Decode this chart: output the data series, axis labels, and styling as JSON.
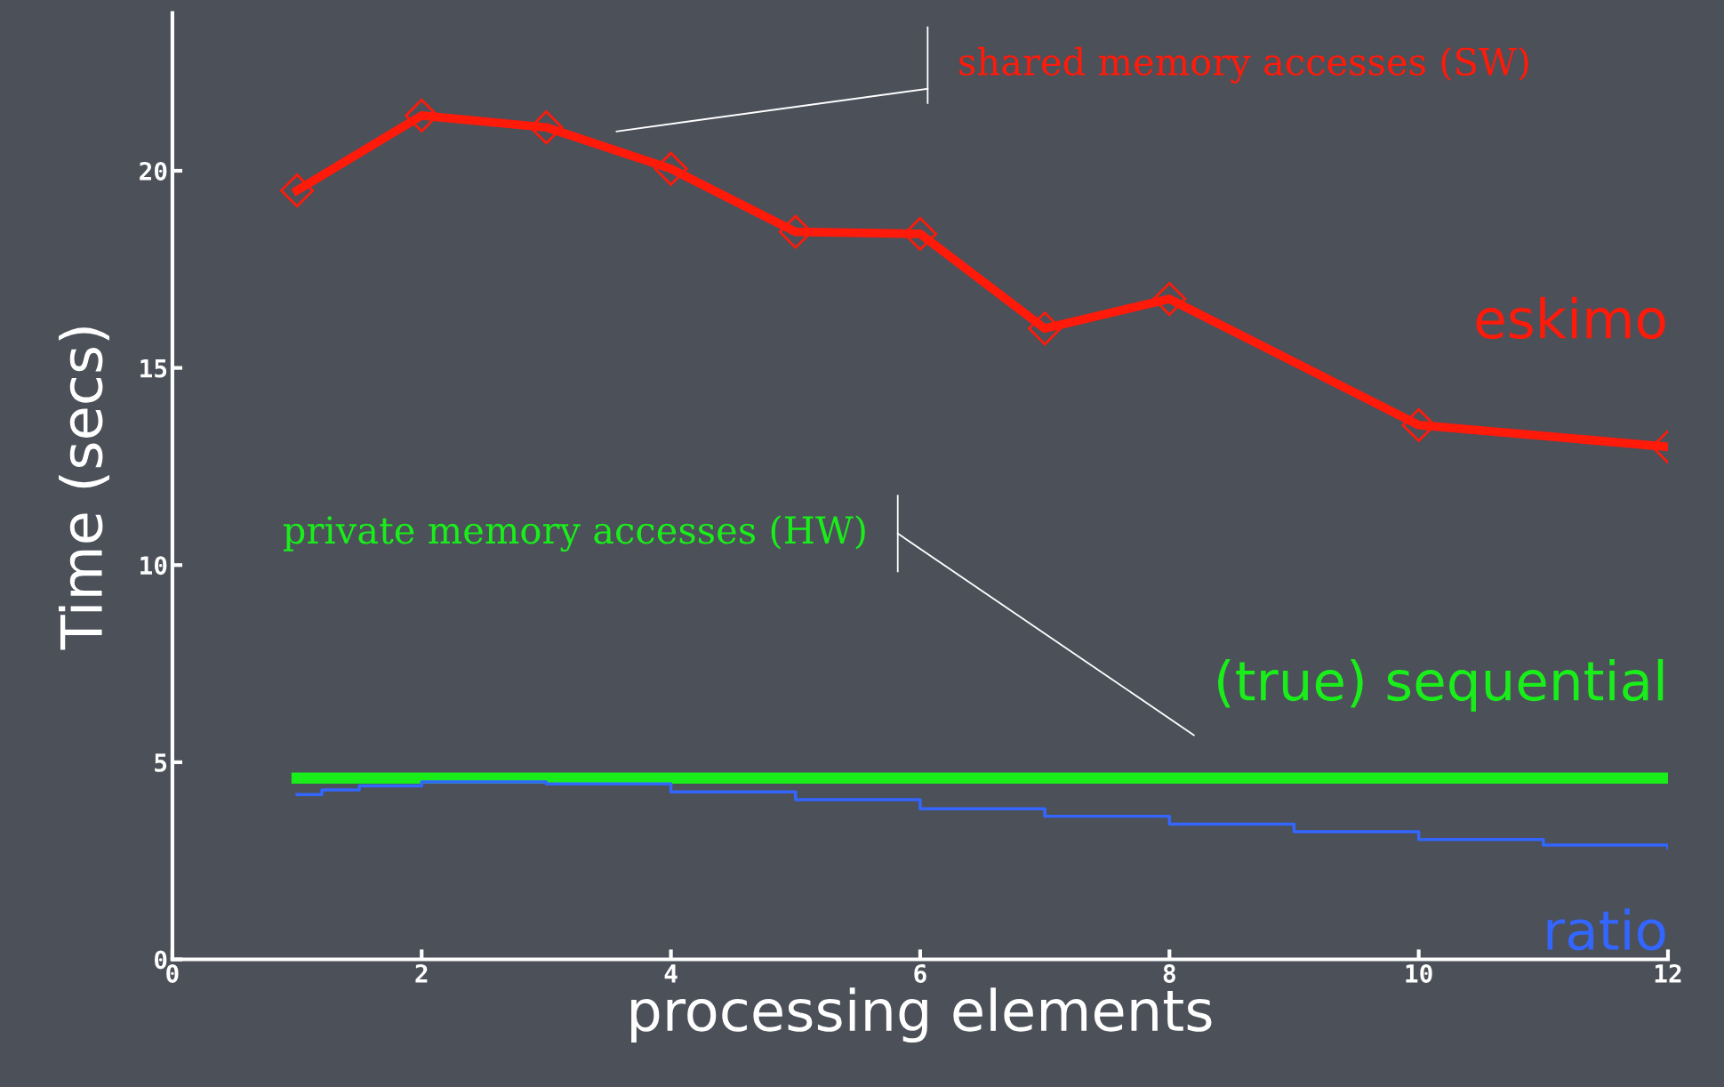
{
  "chart_data": {
    "type": "line",
    "xlabel": "processing elements",
    "ylabel": "Time (secs)",
    "xlim": [
      0,
      12
    ],
    "ylim": [
      0,
      24
    ],
    "xticks": [
      0,
      2,
      4,
      6,
      8,
      10,
      12
    ],
    "yticks": [
      0,
      5,
      10,
      15,
      20
    ],
    "grid": false,
    "legend": false,
    "series": [
      {
        "name": "eskimo",
        "color": "#ff1a0a",
        "marker": "diamond",
        "x": [
          1,
          2,
          3,
          4,
          5,
          6,
          7,
          8,
          10,
          12
        ],
        "values": [
          19.5,
          21.4,
          21.1,
          20.05,
          18.45,
          18.4,
          16.0,
          16.75,
          13.55,
          13.0
        ]
      },
      {
        "name": "(true) sequential",
        "color": "#1aee1a",
        "marker": "none",
        "x": [
          1,
          12
        ],
        "values": [
          4.6,
          4.6
        ]
      },
      {
        "name": "ratio",
        "color": "#3366ff",
        "marker": "none",
        "type": "step",
        "x": [
          1,
          1.2,
          1.5,
          2,
          3,
          4,
          5,
          6,
          7,
          8,
          9,
          10,
          11,
          12
        ],
        "values": [
          4.18,
          4.3,
          4.4,
          4.5,
          4.45,
          4.25,
          4.05,
          3.82,
          3.63,
          3.43,
          3.24,
          3.04,
          2.9,
          2.82
        ]
      }
    ],
    "annotations": [
      "shared memory accesses (SW)",
      "private memory accesses (HW)"
    ]
  }
}
